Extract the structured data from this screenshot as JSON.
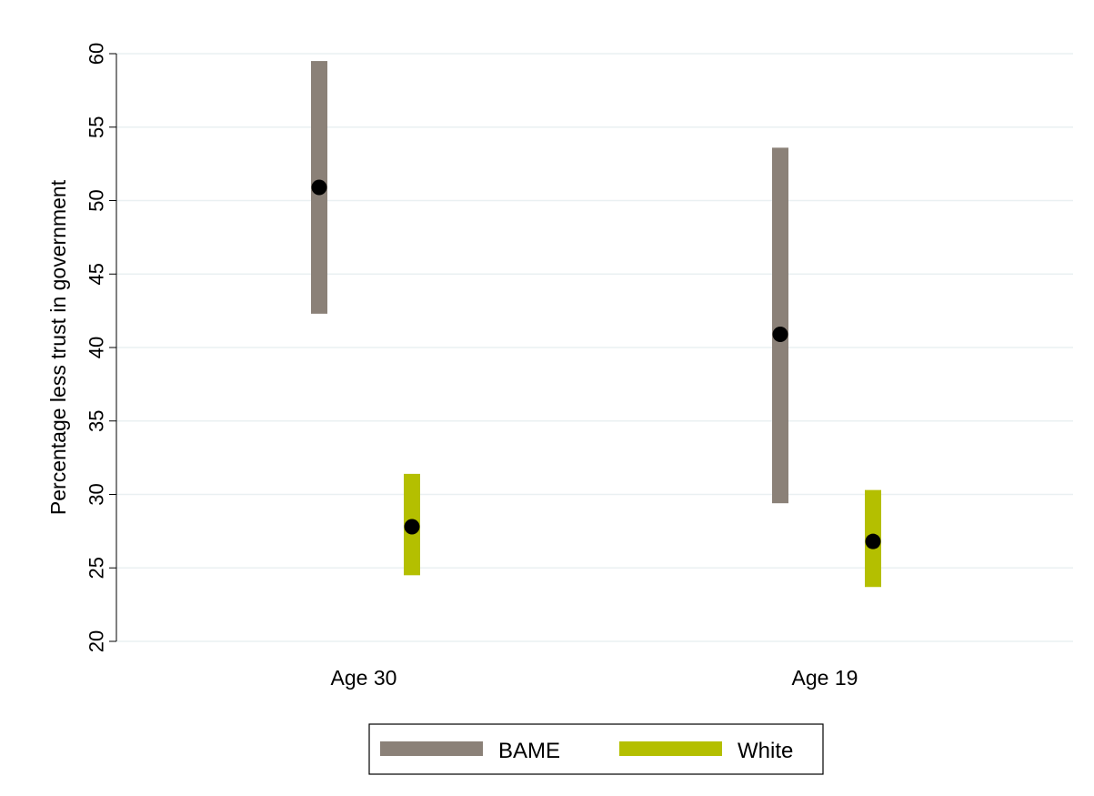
{
  "chart_data": {
    "type": "scatter",
    "ylabel": "Percentage less trust in government",
    "xlabel": "",
    "ylim": [
      20,
      60
    ],
    "yticks": [
      "20",
      "25",
      "30",
      "35",
      "40",
      "45",
      "50",
      "55",
      "60"
    ],
    "grid": true,
    "legend_position": "bottom",
    "categories": [
      "Age 30",
      "Age 19"
    ],
    "series": [
      {
        "name": "BAME",
        "color": "#8b8178",
        "points": [
          {
            "category": "Age 30",
            "value": 50.9,
            "ci_low": 42.3,
            "ci_high": 59.5
          },
          {
            "category": "Age 19",
            "value": 40.9,
            "ci_low": 29.4,
            "ci_high": 53.6
          }
        ]
      },
      {
        "name": "White",
        "color": "#b4bf00",
        "points": [
          {
            "category": "Age 30",
            "value": 27.8,
            "ci_low": 24.5,
            "ci_high": 31.4
          },
          {
            "category": "Age 19",
            "value": 26.8,
            "ci_low": 23.7,
            "ci_high": 30.3
          }
        ]
      }
    ],
    "marker_color": "#000000"
  }
}
